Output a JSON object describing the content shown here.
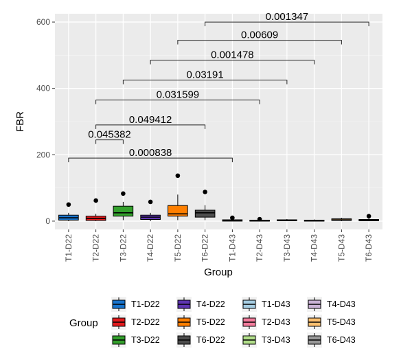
{
  "chart_data": {
    "type": "box",
    "xlabel": "Group",
    "ylabel": "FBR",
    "ylim": [
      -25,
      625
    ],
    "yticks": [
      0,
      200,
      400,
      600
    ],
    "grid": true,
    "categories": [
      "T1-D22",
      "T2-D22",
      "T3-D22",
      "T4-D22",
      "T5-D22",
      "T6-D22",
      "T1-D43",
      "T2-D43",
      "T3-D43",
      "T4-D43",
      "T5-D43",
      "T6-D43"
    ],
    "boxes": [
      {
        "group": "T1-D22",
        "min": 0,
        "q1": 3,
        "median": 10,
        "q3": 18,
        "max": 25,
        "outliers": [
          50
        ],
        "color": "#1874CD"
      },
      {
        "group": "T2-D22",
        "min": 0,
        "q1": 2,
        "median": 8,
        "q3": 15,
        "max": 22,
        "outliers": [
          62
        ],
        "color": "#E31A1C"
      },
      {
        "group": "T3-D22",
        "min": 3,
        "q1": 15,
        "median": 25,
        "q3": 45,
        "max": 58,
        "outliers": [
          83
        ],
        "color": "#33A02C"
      },
      {
        "group": "T4-D22",
        "min": 0,
        "q1": 5,
        "median": 12,
        "q3": 18,
        "max": 25,
        "outliers": [
          58
        ],
        "color": "#5E35B1"
      },
      {
        "group": "T5-D22",
        "min": 3,
        "q1": 15,
        "median": 22,
        "q3": 47,
        "max": 80,
        "outliers": [
          137
        ],
        "color": "#FF7F00"
      },
      {
        "group": "T6-D22",
        "min": 3,
        "q1": 12,
        "median": 25,
        "q3": 33,
        "max": 48,
        "outliers": [
          88
        ],
        "color": "#4D4D4D"
      },
      {
        "group": "T1-D43",
        "min": 0,
        "q1": 0,
        "median": 2,
        "q3": 4,
        "max": 6,
        "outliers": [
          10
        ],
        "color": "#A6CEE3"
      },
      {
        "group": "T2-D43",
        "min": 0,
        "q1": 0,
        "median": 1,
        "q3": 3,
        "max": 5,
        "outliers": [
          6
        ],
        "color": "#F47C9C"
      },
      {
        "group": "T3-D43",
        "min": 0,
        "q1": 1,
        "median": 2,
        "q3": 4,
        "max": 6,
        "outliers": [],
        "color": "#B2DF8A"
      },
      {
        "group": "T4-D43",
        "min": 0,
        "q1": 0,
        "median": 1,
        "q3": 3,
        "max": 5,
        "outliers": [],
        "color": "#CAB2D6"
      },
      {
        "group": "T5-D43",
        "min": 0,
        "q1": 2,
        "median": 4,
        "q3": 7,
        "max": 10,
        "outliers": [],
        "color": "#FDBF6F"
      },
      {
        "group": "T6-D43",
        "min": 0,
        "q1": 1,
        "median": 3,
        "q3": 5,
        "max": 8,
        "outliers": [
          15
        ],
        "color": "#999999"
      }
    ],
    "comparisons": [
      {
        "from": "T1-D22",
        "to": "T1-D43",
        "y": 190,
        "label": "0.000838"
      },
      {
        "from": "T2-D22",
        "to": "T3-D22",
        "y": 245,
        "label": "0.045382"
      },
      {
        "from": "T2-D22",
        "to": "T6-D22",
        "y": 290,
        "label": "0.049412"
      },
      {
        "from": "T2-D22",
        "to": "T2-D43",
        "y": 365,
        "label": "0.031599"
      },
      {
        "from": "T3-D22",
        "to": "T3-D43",
        "y": 425,
        "label": "0.03191"
      },
      {
        "from": "T4-D22",
        "to": "T4-D43",
        "y": 485,
        "label": "0.001478"
      },
      {
        "from": "T5-D22",
        "to": "T5-D43",
        "y": 545,
        "label": "0.00609"
      },
      {
        "from": "T6-D22",
        "to": "T6-D43",
        "y": 600,
        "label": "0.001347"
      }
    ],
    "legend": {
      "title": "Group",
      "position": "bottom",
      "columns": [
        [
          "T1-D22",
          "T2-D22",
          "T3-D22"
        ],
        [
          "T4-D22",
          "T5-D22",
          "T6-D22"
        ],
        [
          "T1-D43",
          "T2-D43",
          "T3-D43"
        ],
        [
          "T4-D43",
          "T5-D43",
          "T6-D43"
        ]
      ]
    }
  }
}
